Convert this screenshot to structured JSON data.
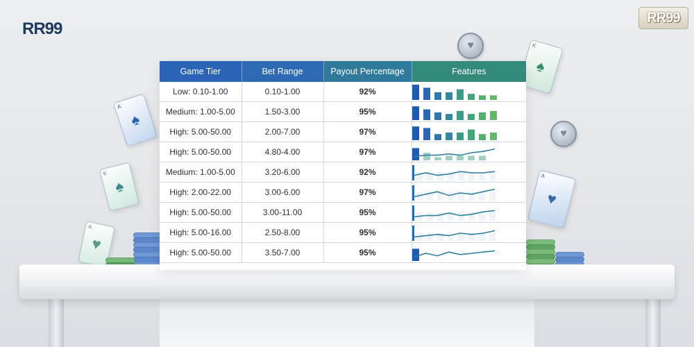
{
  "brand": {
    "logo_text": "RR99",
    "badge_text": "RR99"
  },
  "table": {
    "headers": [
      "Game Tier",
      "Bet Range",
      "Payout Percentage",
      "Features"
    ],
    "header_colors": [
      "#2b63b6",
      "#2e6ab4",
      "#2f7a9c",
      "#338a78"
    ],
    "rows": [
      {
        "tier": "Low: 0.10-1.00",
        "bet_range": "0.10-1.00",
        "payout": "92%",
        "feature": {
          "type": "bars",
          "values": [
            10,
            8,
            5,
            5,
            7,
            4,
            3,
            3
          ]
        }
      },
      {
        "tier": "Medium: 1.00-5.00",
        "bet_range": "1.50-3.00",
        "payout": "95%",
        "feature": {
          "type": "bars",
          "values": [
            9,
            7,
            5,
            4,
            6,
            4,
            5,
            6
          ]
        }
      },
      {
        "tier": "High: 5.00-50.00",
        "bet_range": "2.00-7.00",
        "payout": "97%",
        "feature": {
          "type": "bars",
          "values": [
            9,
            8,
            4,
            5,
            5,
            7,
            4,
            5
          ]
        }
      },
      {
        "tier": "High: 5.00-50.00",
        "bet_range": "4.80-4.00",
        "payout": "97%",
        "feature": {
          "type": "bars+line",
          "values": [
            8,
            5,
            2,
            3,
            3,
            3,
            3
          ],
          "line": [
            2,
            3,
            3,
            4,
            3,
            5,
            6,
            8
          ]
        }
      },
      {
        "tier": "Medium: 1.00-5.00",
        "bet_range": "3.20-6.00",
        "payout": "92%",
        "feature": {
          "type": "line",
          "values": [
            3,
            5,
            3,
            4,
            6,
            5,
            5,
            6
          ]
        }
      },
      {
        "tier": "High: 2.00-22.00",
        "bet_range": "3.00-6.00",
        "payout": "97%",
        "feature": {
          "type": "line",
          "values": [
            2,
            4,
            6,
            3,
            5,
            4,
            6,
            8
          ]
        }
      },
      {
        "tier": "High: 5.00-50.00",
        "bet_range": "3.00-11.00",
        "payout": "95%",
        "feature": {
          "type": "line",
          "values": [
            2,
            3,
            3,
            5,
            3,
            4,
            6,
            7
          ]
        }
      },
      {
        "tier": "High: 5.00-16.00",
        "bet_range": "2.50-8.00",
        "payout": "95%",
        "feature": {
          "type": "line",
          "values": [
            2,
            3,
            4,
            3,
            5,
            4,
            5,
            7
          ]
        }
      },
      {
        "tier": "High: 5.00-50.00",
        "bet_range": "3.50-7.00",
        "payout": "95%",
        "feature": {
          "type": "bar+line",
          "values": [
            8
          ],
          "line": [
            2,
            5,
            3,
            6,
            4,
            5,
            6,
            7
          ]
        }
      }
    ]
  },
  "decor": {
    "cards": [
      {
        "name": "card-ace-spade-left",
        "rank": "A",
        "suit": "♠",
        "tint": "#c3d7f0",
        "ink": "#2b63b6"
      },
      {
        "name": "card-king-spade-left",
        "rank": "K",
        "suit": "♠",
        "tint": "#cfe8e0",
        "ink": "#3b8a8a"
      },
      {
        "name": "card-ace-heart-low",
        "rank": "A",
        "suit": "♥",
        "tint": "#d2eadf",
        "ink": "#5a9a86"
      },
      {
        "name": "card-king-spade-right",
        "rank": "K",
        "suit": "♠",
        "tint": "#cfe8da",
        "ink": "#3b8a6a"
      },
      {
        "name": "card-ace-heart-right",
        "rank": "A",
        "suit": "♥",
        "tint": "#bcd3ee",
        "ink": "#3a6aa6"
      }
    ]
  }
}
